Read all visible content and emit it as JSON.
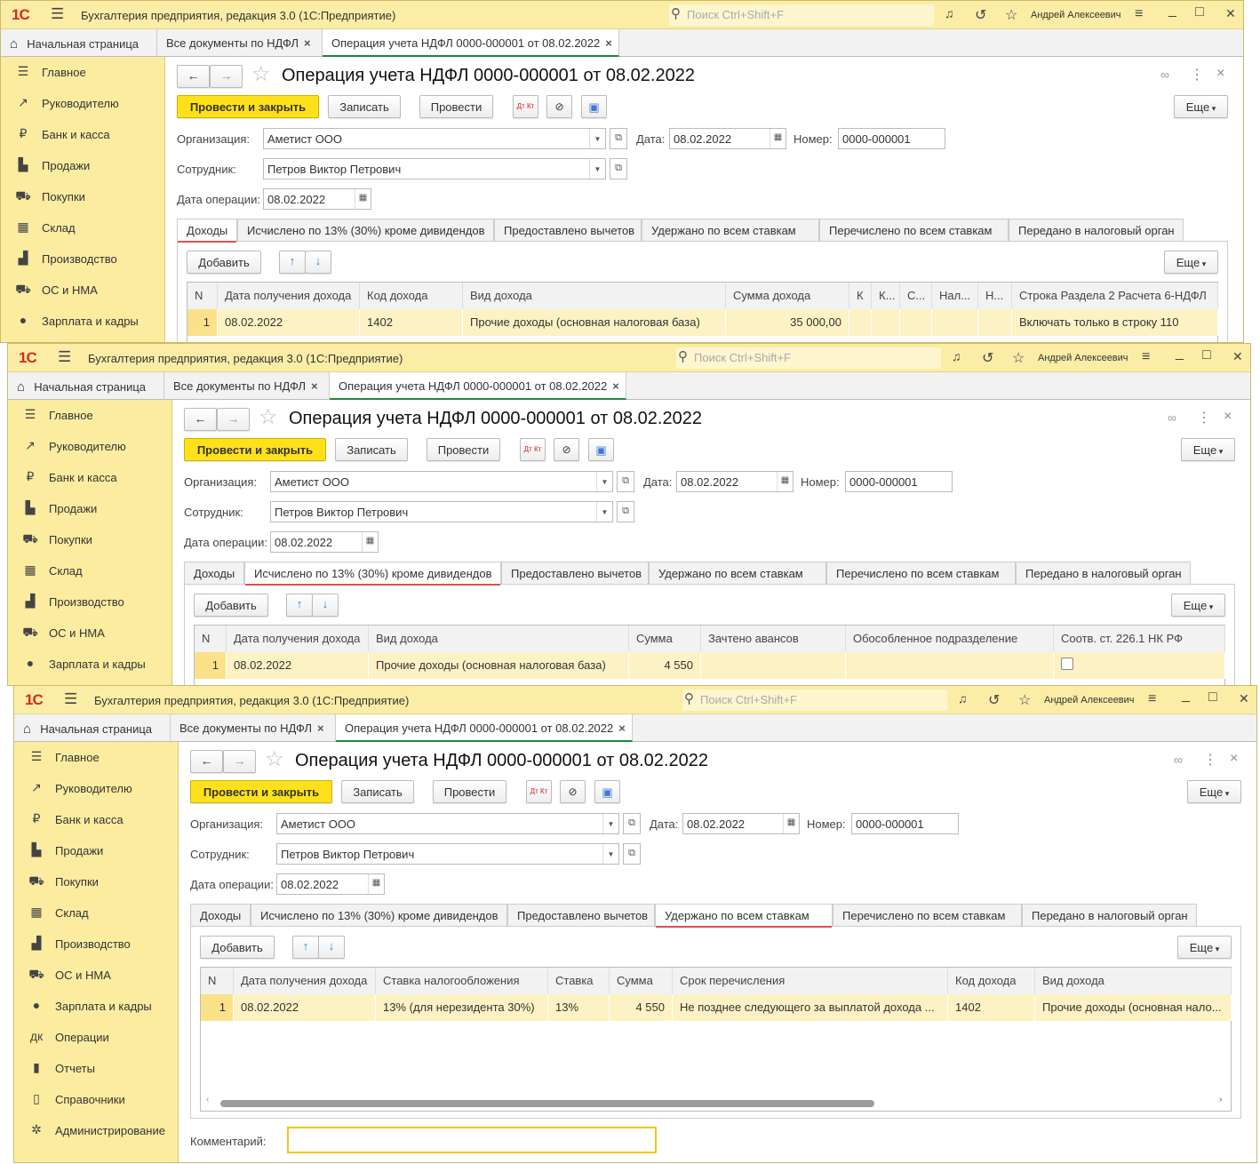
{
  "app": {
    "logo": "1С",
    "title": "Бухгалтерия предприятия, редакция 3.0  (1С:Предприятие)",
    "search_placeholder": "Поиск Ctrl+Shift+F",
    "user": "Андрей Алексеевич"
  },
  "open_tabs": [
    {
      "label": "Начальная страница",
      "icon": "home-icon"
    },
    {
      "label": "Все документы по НДФЛ",
      "closable": true
    },
    {
      "label": "Операция учета НДФЛ 0000-000001 от 08.02.2022",
      "closable": true,
      "active": true
    }
  ],
  "sidebar": [
    {
      "label": "Главное",
      "icon": "menu-icon"
    },
    {
      "label": "Руководителю",
      "icon": "trend-icon"
    },
    {
      "label": "Банк и касса",
      "icon": "ruble-icon"
    },
    {
      "label": "Продажи",
      "icon": "bag-icon"
    },
    {
      "label": "Покупки",
      "icon": "cart-icon"
    },
    {
      "label": "Склад",
      "icon": "warehouse-icon"
    },
    {
      "label": "Производство",
      "icon": "factory-icon"
    },
    {
      "label": "ОС и НМА",
      "icon": "truck-icon"
    },
    {
      "label": "Зарплата и кадры",
      "icon": "person-icon"
    },
    {
      "label": "Операции",
      "icon": "dt-kt-icon"
    },
    {
      "label": "Отчеты",
      "icon": "bar-chart-icon"
    },
    {
      "label": "Справочники",
      "icon": "books-icon"
    },
    {
      "label": "Администрирование",
      "icon": "gear-icon"
    }
  ],
  "document": {
    "title": "Операция учета НДФЛ 0000-000001 от 08.02.2022",
    "buttons": {
      "post_close": "Провести и закрыть",
      "save": "Записать",
      "post": "Провести",
      "more": "Еще"
    },
    "fields": {
      "org_label": "Организация:",
      "org_value": "Аметист ООО",
      "date_label": "Дата:",
      "date_value": "08.02.2022",
      "number_label": "Номер:",
      "number_value": "0000-000001",
      "employee_label": "Сотрудник:",
      "employee_value": "Петров Виктор Петрович",
      "op_date_label": "Дата операции:",
      "op_date_value": "08.02.2022",
      "comment_label": "Комментарий:",
      "comment_value": ""
    },
    "form_tabs": [
      "Доходы",
      "Исчислено по 13% (30%) кроме дивидендов",
      "Предоставлено вычетов",
      "Удержано по всем ставкам",
      "Перечислено по всем ставкам",
      "Передано в налоговый орган"
    ],
    "table_buttons": {
      "add": "Добавить",
      "more": "Еще"
    }
  },
  "windows": [
    {
      "active_tab": 0,
      "columns": [
        "N",
        "Дата получения дохода",
        "Код дохода",
        "Вид дохода",
        "Сумма дохода",
        "К",
        "К...",
        "С...",
        "Нал...",
        "Н...",
        "Строка Раздела 2 Расчета 6-НДФЛ"
      ],
      "rows": [
        [
          "1",
          "08.02.2022",
          "1402",
          "Прочие доходы (основная налоговая база)",
          "35 000,00",
          "",
          "",
          "",
          "",
          "",
          "Включать только в строку 110"
        ]
      ]
    },
    {
      "active_tab": 1,
      "columns": [
        "N",
        "Дата получения дохода",
        "Вид дохода",
        "Сумма",
        "Зачтено авансов",
        "Обособленное подразделение",
        "Соотв. ст. 226.1 НК РФ"
      ],
      "rows": [
        [
          "1",
          "08.02.2022",
          "Прочие доходы (основная налоговая база)",
          "4 550",
          "",
          "",
          false
        ]
      ]
    },
    {
      "active_tab": 3,
      "columns": [
        "N",
        "Дата получения дохода",
        "Ставка налогообложения",
        "Ставка",
        "Сумма",
        "Срок перечисления",
        "Код дохода",
        "Вид дохода"
      ],
      "rows": [
        [
          "1",
          "08.02.2022",
          "13% (для нерезидента 30%)",
          "13%",
          "4 550",
          "Не позднее следующего за выплатой дохода ...",
          "1402",
          "Прочие доходы (основная нало..."
        ]
      ]
    }
  ]
}
